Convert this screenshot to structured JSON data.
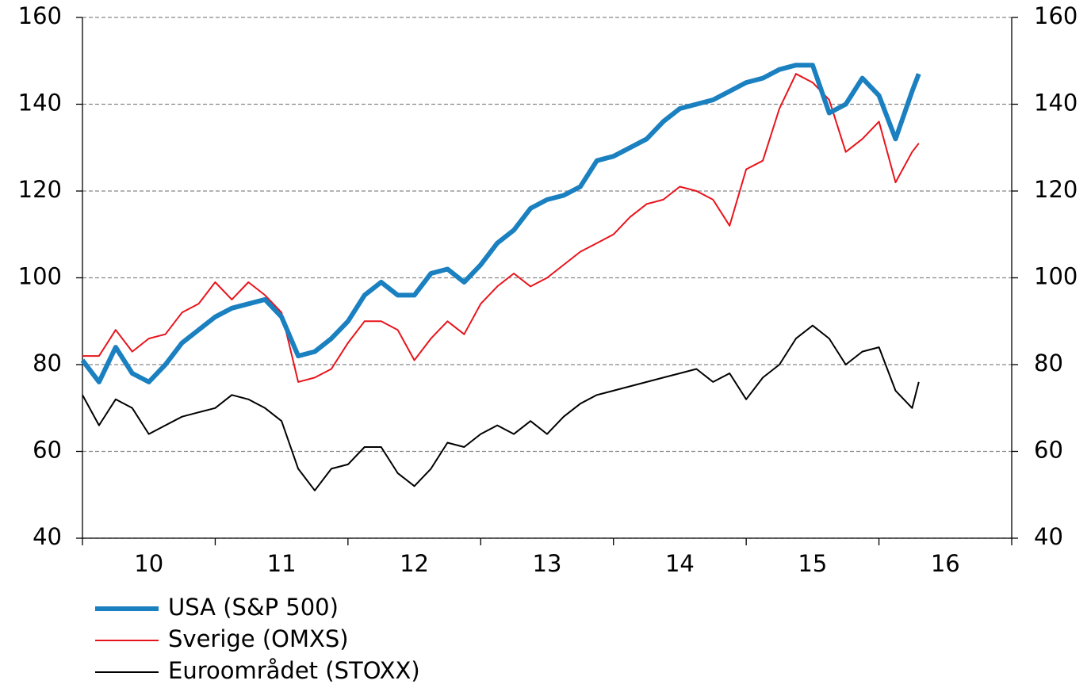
{
  "chart_data": {
    "type": "line",
    "categories": [
      "10",
      "11",
      "12",
      "13",
      "14",
      "15",
      "16"
    ],
    "x": [
      10.0,
      10.125,
      10.25,
      10.375,
      10.5,
      10.625,
      10.75,
      10.875,
      11.0,
      11.125,
      11.25,
      11.375,
      11.5,
      11.625,
      11.75,
      11.875,
      12.0,
      12.125,
      12.25,
      12.375,
      12.5,
      12.625,
      12.75,
      12.875,
      13.0,
      13.125,
      13.25,
      13.375,
      13.5,
      13.625,
      13.75,
      13.875,
      14.0,
      14.125,
      14.25,
      14.375,
      14.5,
      14.625,
      14.75,
      14.875,
      15.0,
      15.125,
      15.25,
      15.375,
      15.5,
      15.625,
      15.75,
      15.875,
      16.0,
      16.125,
      16.25,
      16.3
    ],
    "xlim": [
      10,
      17
    ],
    "ylim": [
      40,
      160
    ],
    "yticks": [
      40,
      60,
      80,
      100,
      120,
      140,
      160
    ],
    "y2lim": [
      40,
      160
    ],
    "y2ticks": [
      40,
      60,
      80,
      100,
      120,
      140,
      160
    ],
    "grid": true,
    "legend": "bottom-left",
    "series": [
      {
        "name": "USA (S&P 500)",
        "color": "#1a80c0",
        "width": 6,
        "values": [
          81,
          76,
          84,
          78,
          76,
          80,
          85,
          88,
          91,
          93,
          94,
          95,
          91,
          82,
          83,
          86,
          90,
          96,
          99,
          96,
          96,
          101,
          102,
          99,
          103,
          108,
          111,
          116,
          118,
          119,
          121,
          127,
          128,
          130,
          132,
          136,
          139,
          140,
          141,
          143,
          145,
          146,
          148,
          149,
          149,
          138,
          140,
          146,
          142,
          132,
          143,
          147
        ]
      },
      {
        "name": "Sverige (OMXS)",
        "color": "#e8141c",
        "width": 2,
        "values": [
          82,
          82,
          88,
          83,
          86,
          87,
          92,
          94,
          99,
          95,
          99,
          96,
          92,
          76,
          77,
          79,
          85,
          90,
          90,
          88,
          81,
          86,
          90,
          87,
          94,
          98,
          101,
          98,
          100,
          103,
          106,
          108,
          110,
          114,
          117,
          118,
          121,
          120,
          118,
          112,
          125,
          127,
          139,
          147,
          145,
          141,
          129,
          132,
          136,
          122,
          129,
          131
        ]
      },
      {
        "name": "Euroområdet (STOXX)",
        "color": "#000000",
        "width": 2,
        "values": [
          73,
          66,
          72,
          70,
          64,
          66,
          68,
          69,
          70,
          73,
          72,
          70,
          67,
          56,
          51,
          56,
          57,
          61,
          61,
          55,
          52,
          56,
          62,
          61,
          64,
          66,
          64,
          67,
          64,
          68,
          71,
          73,
          74,
          75,
          76,
          77,
          78,
          79,
          76,
          78,
          72,
          77,
          80,
          86,
          89,
          86,
          80,
          83,
          84,
          74,
          70,
          76
        ]
      }
    ]
  }
}
